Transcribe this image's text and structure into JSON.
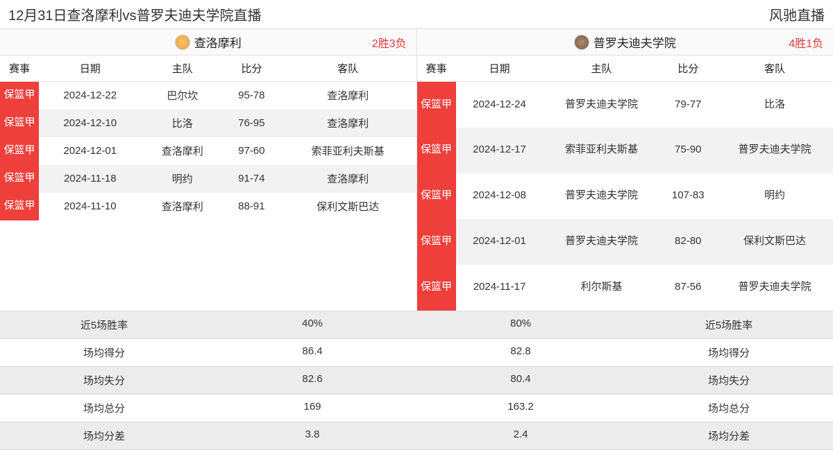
{
  "header": {
    "title": "12月31日查洛摩利vs普罗夫迪夫学院直播",
    "brand": "风驰直播"
  },
  "colors": {
    "badge_bg": "#ee3f3b",
    "badge_fg": "#ffffff",
    "record_color": "#e23b3b",
    "logo_left": "#e8a23c",
    "logo_right": "#7a5a48"
  },
  "columns": [
    "赛事",
    "日期",
    "主队",
    "比分",
    "客队"
  ],
  "left": {
    "team_name": "查洛摩利",
    "record_win": "2胜",
    "record_lose": "3负",
    "rows": [
      {
        "badge": "保篮甲",
        "date": "2024-12-22",
        "home": "巴尔坎",
        "score": "95-78",
        "away": "查洛摩利"
      },
      {
        "badge": "保篮甲",
        "date": "2024-12-10",
        "home": "比洛",
        "score": "76-95",
        "away": "查洛摩利"
      },
      {
        "badge": "保篮甲",
        "date": "2024-12-01",
        "home": "查洛摩利",
        "score": "97-60",
        "away": "索菲亚利夫斯基"
      },
      {
        "badge": "保篮甲",
        "date": "2024-11-18",
        "home": "明约",
        "score": "91-74",
        "away": "查洛摩利"
      },
      {
        "badge": "保篮甲",
        "date": "2024-11-10",
        "home": "查洛摩利",
        "score": "88-91",
        "away": "保利文斯巴达"
      }
    ]
  },
  "right": {
    "team_name": "普罗夫迪夫学院",
    "record_win": "4胜",
    "record_lose": "1负",
    "rows": [
      {
        "badge": "保篮甲",
        "date": "2024-12-24",
        "home": "普罗夫迪夫学院",
        "score": "79-77",
        "away": "比洛"
      },
      {
        "badge": "保篮甲",
        "date": "2024-12-17",
        "home": "索菲亚利夫斯基",
        "score": "75-90",
        "away": "普罗夫迪夫学院"
      },
      {
        "badge": "保篮甲",
        "date": "2024-12-08",
        "home": "普罗夫迪夫学院",
        "score": "107-83",
        "away": "明约"
      },
      {
        "badge": "保篮甲",
        "date": "2024-12-01",
        "home": "普罗夫迪夫学院",
        "score": "82-80",
        "away": "保利文斯巴达"
      },
      {
        "badge": "保篮甲",
        "date": "2024-11-17",
        "home": "利尔斯基",
        "score": "87-56",
        "away": "普罗夫迪夫学院"
      }
    ]
  },
  "stats": {
    "labels": [
      "近5场胜率",
      "场均得分",
      "场均失分",
      "场均总分",
      "场均分差"
    ],
    "left_values": [
      "40%",
      "86.4",
      "82.6",
      "169",
      "3.8"
    ],
    "right_values": [
      "80%",
      "82.8",
      "80.4",
      "163.2",
      "2.4"
    ]
  }
}
